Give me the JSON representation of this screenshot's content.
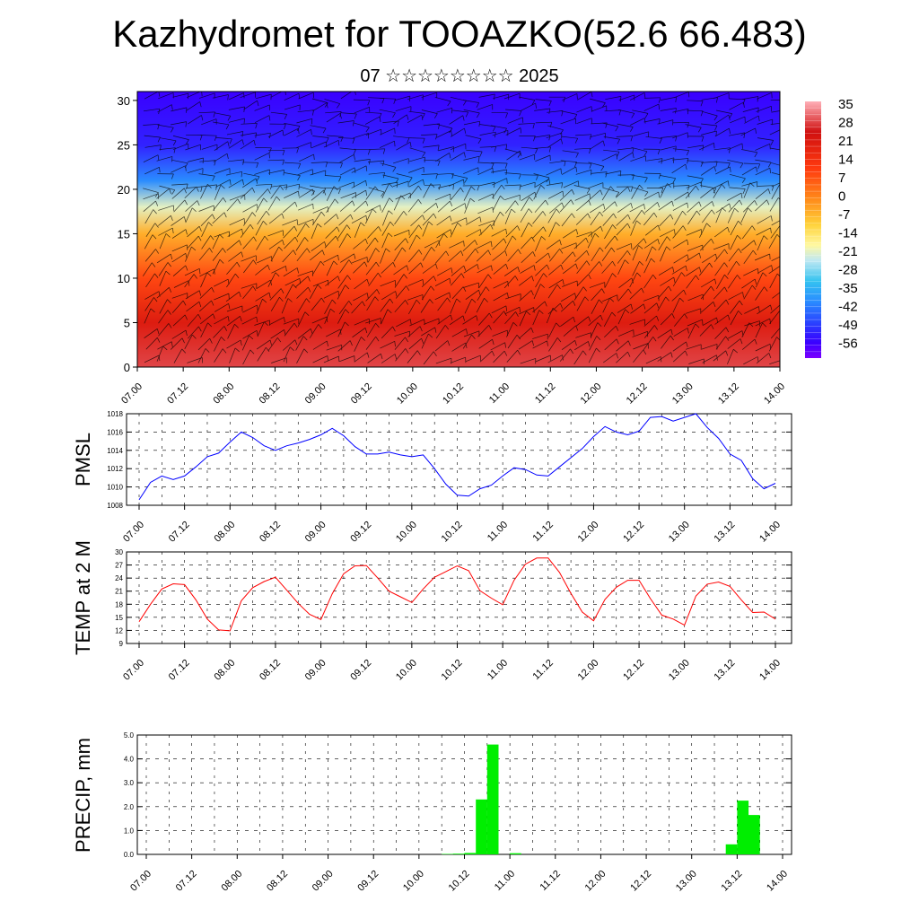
{
  "title": "Kazhydromet for TOOAZKO(52.6 66.483)",
  "subtitle": "07 ☆☆☆☆☆☆☆☆ 2025",
  "time_ticks": [
    "07.00",
    "07.12",
    "08.00",
    "08.12",
    "09.00",
    "09.12",
    "10.00",
    "10.12",
    "11.00",
    "11.12",
    "12.00",
    "12.12",
    "13.00",
    "13.12",
    "14.00"
  ],
  "chart_data": [
    {
      "type": "heatmap",
      "name": "upper-air temperature cross-section with wind barbs",
      "x_ticks": [
        "07.00",
        "07.12",
        "08.00",
        "08.12",
        "09.00",
        "09.12",
        "10.00",
        "10.12",
        "11.00",
        "11.12",
        "12.00",
        "12.12",
        "13.00",
        "13.12",
        "14.00"
      ],
      "ylim": [
        0,
        31
      ],
      "y_ticks": [
        0,
        5,
        10,
        15,
        20,
        25,
        30
      ],
      "colorbar": {
        "labels": [
          35,
          28,
          21,
          14,
          7,
          0,
          -7,
          -14,
          -21,
          -28,
          -35,
          -42,
          -49,
          -56
        ],
        "range": [
          -60,
          38
        ]
      },
      "temperature_profile": [
        {
          "level": 0,
          "value": 30
        },
        {
          "level": 5,
          "value": 22
        },
        {
          "level": 10,
          "value": 10
        },
        {
          "level": 15,
          "value": -5
        },
        {
          "level": 18,
          "value": -20
        },
        {
          "level": 21,
          "value": -40
        },
        {
          "level": 25,
          "value": -52
        },
        {
          "level": 31,
          "value": -56
        }
      ]
    },
    {
      "type": "line",
      "ylabel": "PMSL",
      "ylim": [
        1008,
        1018
      ],
      "y_ticks": [
        1008,
        1010,
        1012,
        1014,
        1016,
        1018
      ],
      "color": "#0000ff",
      "x": [
        0,
        3,
        6,
        9,
        12,
        15,
        18,
        21,
        24,
        27,
        30,
        33,
        36,
        39,
        42,
        45,
        48,
        51,
        54,
        57,
        60,
        63,
        66,
        69,
        72,
        75,
        78,
        81,
        84,
        87,
        90,
        93,
        96,
        99,
        102,
        105,
        108,
        111,
        114,
        117,
        120,
        123,
        126,
        129,
        132,
        135,
        138,
        141,
        144,
        147,
        150,
        153,
        156,
        159,
        162,
        165,
        168
      ],
      "values": [
        1008.6,
        1010.5,
        1011.2,
        1010.8,
        1011.2,
        1012.2,
        1013.3,
        1013.7,
        1014.9,
        1016.0,
        1015.4,
        1014.5,
        1014.0,
        1014.5,
        1014.8,
        1015.2,
        1015.7,
        1016.4,
        1015.6,
        1014.4,
        1013.6,
        1013.6,
        1013.8,
        1013.5,
        1013.3,
        1013.5,
        1012.0,
        1010.3,
        1009.1,
        1009.0,
        1009.8,
        1010.2,
        1011.2,
        1012.1,
        1011.9,
        1011.3,
        1011.2,
        1012.2,
        1013.2,
        1014.2,
        1015.5,
        1016.6,
        1016.0,
        1015.7,
        1016.1,
        1017.6,
        1017.7,
        1017.2,
        1017.6,
        1018.0,
        1016.5,
        1015.3,
        1013.6,
        1012.9,
        1010.9,
        1009.8,
        1010.4
      ]
    },
    {
      "type": "line",
      "ylabel": "TEMP at 2 M",
      "ylim": [
        9,
        30
      ],
      "y_ticks": [
        9,
        12,
        15,
        18,
        21,
        24,
        27,
        30
      ],
      "color": "#ff0000",
      "x": [
        0,
        3,
        6,
        9,
        12,
        15,
        18,
        21,
        24,
        27,
        30,
        33,
        36,
        39,
        42,
        45,
        48,
        51,
        54,
        57,
        60,
        63,
        66,
        69,
        72,
        75,
        78,
        81,
        84,
        87,
        90,
        93,
        96,
        99,
        102,
        105,
        108,
        111,
        114,
        117,
        120,
        123,
        126,
        129,
        132,
        135,
        138,
        141,
        144,
        147,
        150,
        153,
        156,
        159,
        162,
        165,
        168
      ],
      "values": [
        14,
        18,
        21.5,
        22.7,
        22.5,
        19,
        14.6,
        12.1,
        11.9,
        18.8,
        21.8,
        23.2,
        24.2,
        21.2,
        18.2,
        15.7,
        14.5,
        20.4,
        25,
        26.8,
        26.9,
        24,
        21,
        19.7,
        18.4,
        21.5,
        24.2,
        25.5,
        26.8,
        25.7,
        21.1,
        19.4,
        17.9,
        23.5,
        27.2,
        28.6,
        28.6,
        25.3,
        20.5,
        16.2,
        14.2,
        19.1,
        21.9,
        23.5,
        23.5,
        19.3,
        15.5,
        14.6,
        13.2,
        19.9,
        22.6,
        23.1,
        22.1,
        19,
        16.1,
        16.2,
        14.6
      ]
    },
    {
      "type": "bar",
      "ylabel": "PRECIP, mm",
      "ylim": [
        0,
        5
      ],
      "y_ticks": [
        "0.0",
        "1.0",
        "2.0",
        "3.0",
        "4.0",
        "5.0"
      ],
      "color": "#00ee00",
      "x": [
        78,
        81,
        84,
        87,
        90,
        96,
        153,
        156,
        159
      ],
      "values": [
        0.02,
        0.03,
        0.06,
        2.3,
        4.6,
        0.05,
        0.42,
        2.25,
        1.65
      ],
      "bin_hours": 3
    }
  ]
}
